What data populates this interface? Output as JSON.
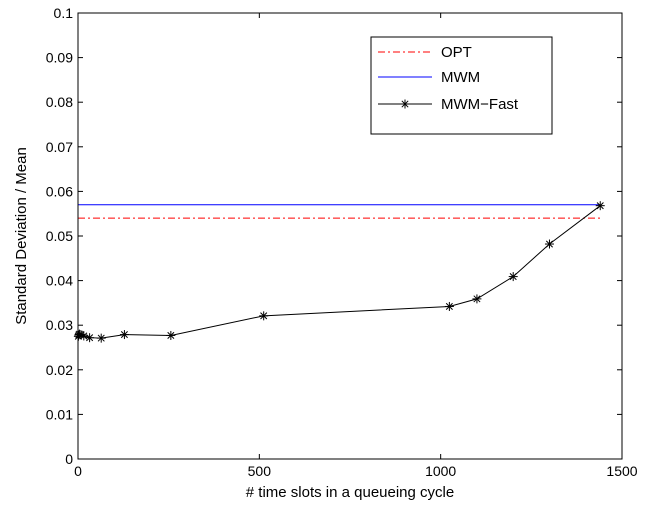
{
  "chart_data": {
    "type": "line",
    "xlabel": "# time slots in a queueing cycle",
    "ylabel": "Standard Deviation / Mean",
    "xlim": [
      0,
      1500
    ],
    "ylim": [
      0,
      0.1
    ],
    "x_ticks": [
      0,
      500,
      1000,
      1500
    ],
    "x_tick_labels": [
      "0",
      "500",
      "1000",
      "1500"
    ],
    "y_ticks": [
      0,
      0.01,
      0.02,
      0.03,
      0.04,
      0.05,
      0.06,
      0.07,
      0.08,
      0.09,
      0.1
    ],
    "y_tick_labels": [
      "0",
      "0.01",
      "0.02",
      "0.03",
      "0.04",
      "0.05",
      "0.06",
      "0.07",
      "0.08",
      "0.09",
      "0.1"
    ],
    "grid": false,
    "legend_position": "top-right",
    "series": [
      {
        "name": "OPT",
        "color": "#ff0000",
        "dash": "dash-dot",
        "marker": "none",
        "x": [
          0,
          1440
        ],
        "y": [
          0.054,
          0.054
        ]
      },
      {
        "name": "MWM",
        "color": "#0000ff",
        "dash": "solid",
        "marker": "none",
        "x": [
          0,
          1440
        ],
        "y": [
          0.057,
          0.057
        ]
      },
      {
        "name": "MWM−Fast",
        "color": "#000000",
        "dash": "solid",
        "marker": "asterisk",
        "x": [
          1,
          2,
          4,
          8,
          16,
          32,
          64,
          128,
          256,
          512,
          1024,
          1100,
          1200,
          1300,
          1440
        ],
        "y": [
          0.0275,
          0.0278,
          0.028,
          0.0279,
          0.0276,
          0.0272,
          0.0271,
          0.0279,
          0.0277,
          0.0321,
          0.0342,
          0.0359,
          0.0409,
          0.0482,
          0.0568
        ]
      }
    ]
  }
}
